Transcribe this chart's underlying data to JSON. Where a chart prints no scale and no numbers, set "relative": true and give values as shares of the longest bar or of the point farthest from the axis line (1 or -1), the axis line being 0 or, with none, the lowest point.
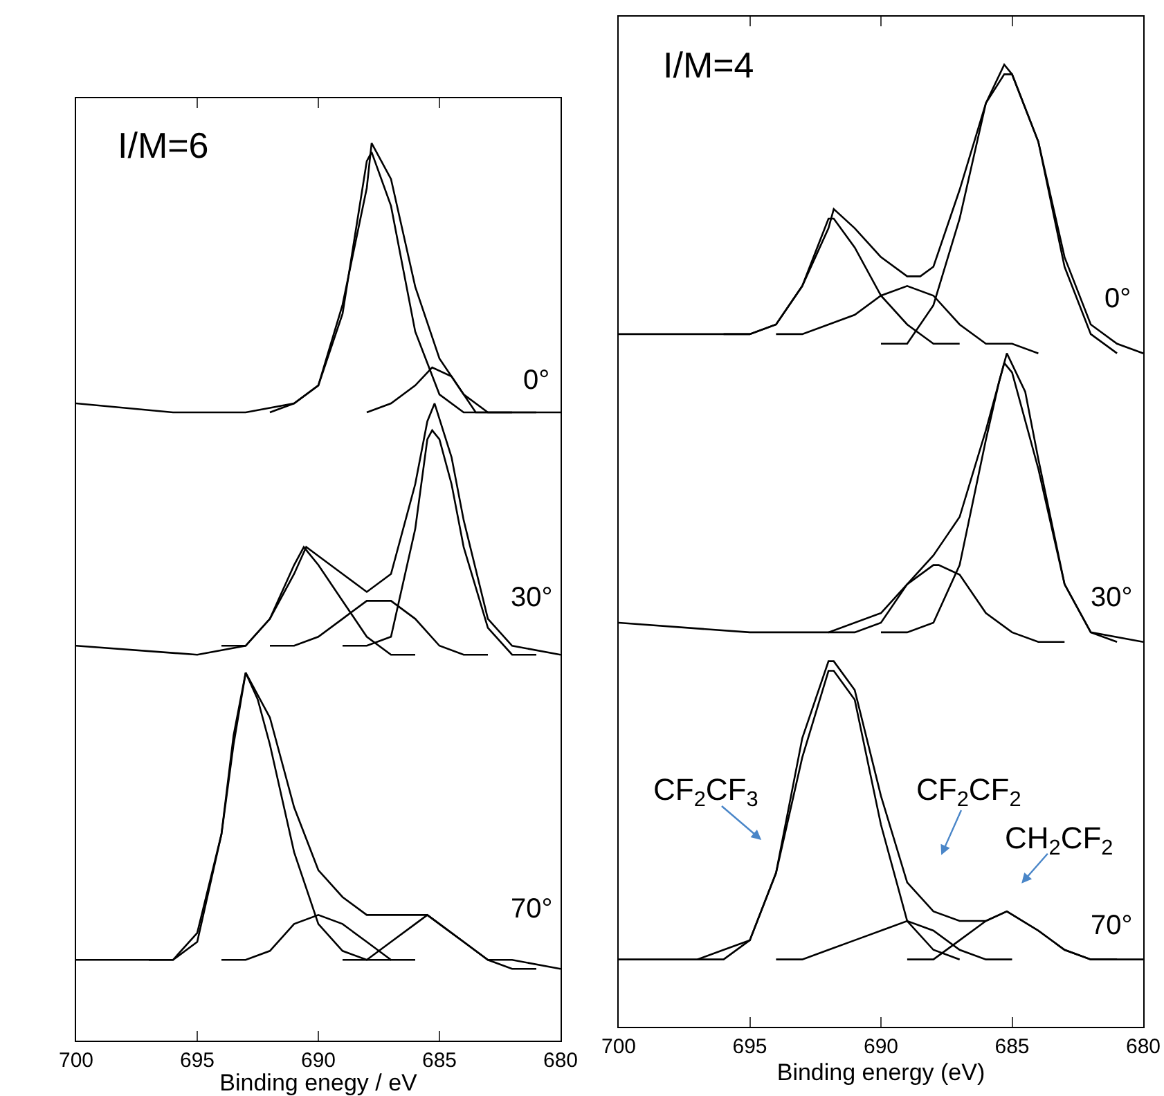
{
  "chart_data": [
    {
      "type": "line",
      "title": "I/M=6",
      "xlabel": "Binding enegy / eV",
      "relative": true,
      "xlim": [
        700,
        680
      ],
      "xticks": [
        700,
        695,
        690,
        685,
        680
      ],
      "marker": "none",
      "line_style": "solid",
      "annotations": [
        "0°",
        "30°",
        "70°"
      ],
      "series": [
        {
          "color": "#000000",
          "x": [
            700,
            696,
            693,
            691,
            690,
            689,
            688,
            687.8,
            687,
            686,
            685,
            684,
            683,
            682,
            680
          ],
          "values": [
            0.71,
            0.7,
            0.7,
            0.71,
            0.73,
            0.82,
            0.95,
            1.0,
            0.96,
            0.84,
            0.76,
            0.72,
            0.7,
            0.7,
            0.7
          ]
        },
        {
          "color": "#000000",
          "x": [
            692,
            691,
            690,
            689,
            688,
            687.8,
            687,
            686,
            685,
            684,
            682
          ],
          "values": [
            0.7,
            0.71,
            0.73,
            0.81,
            0.98,
            0.99,
            0.93,
            0.79,
            0.72,
            0.7,
            0.7
          ]
        },
        {
          "color": "#000000",
          "x": [
            688,
            687,
            686,
            685.3,
            684.5,
            683.5,
            682.5,
            681
          ],
          "values": [
            0.7,
            0.71,
            0.73,
            0.75,
            0.74,
            0.7,
            0.7,
            0.7
          ]
        },
        {
          "color": "#000000",
          "x": [
            700,
            695,
            693,
            692,
            691,
            690.5,
            690,
            689,
            688,
            687,
            686,
            685.5,
            685.2,
            684.5,
            684,
            683,
            682,
            680
          ],
          "values": [
            0.44,
            0.43,
            0.44,
            0.47,
            0.52,
            0.55,
            0.54,
            0.52,
            0.5,
            0.52,
            0.62,
            0.69,
            0.71,
            0.65,
            0.58,
            0.47,
            0.44,
            0.43
          ]
        },
        {
          "color": "#000000",
          "x": [
            694,
            693,
            692,
            691,
            690.6,
            690,
            689,
            688,
            687,
            686
          ],
          "values": [
            0.44,
            0.44,
            0.47,
            0.53,
            0.55,
            0.53,
            0.49,
            0.45,
            0.43,
            0.43
          ]
        },
        {
          "color": "#000000",
          "x": [
            692,
            691,
            690,
            689,
            688,
            687.5,
            687,
            686,
            685,
            684,
            683
          ],
          "values": [
            0.44,
            0.44,
            0.45,
            0.47,
            0.49,
            0.49,
            0.49,
            0.47,
            0.44,
            0.43,
            0.43
          ]
        },
        {
          "color": "#000000",
          "x": [
            689,
            688,
            687,
            686,
            685.5,
            685.3,
            685,
            684.5,
            684,
            683,
            682,
            681
          ],
          "values": [
            0.44,
            0.44,
            0.45,
            0.57,
            0.67,
            0.68,
            0.67,
            0.62,
            0.55,
            0.46,
            0.43,
            0.43
          ]
        },
        {
          "color": "#000000",
          "x": [
            700,
            696,
            695,
            694,
            693.5,
            693,
            692,
            691,
            690,
            689,
            688,
            687,
            686,
            685.5,
            685,
            684,
            683,
            682,
            680
          ],
          "values": [
            0.09,
            0.09,
            0.11,
            0.23,
            0.33,
            0.41,
            0.36,
            0.26,
            0.19,
            0.16,
            0.14,
            0.14,
            0.14,
            0.14,
            0.13,
            0.11,
            0.09,
            0.09,
            0.08
          ]
        },
        {
          "color": "#000000",
          "x": [
            697,
            696,
            695,
            694,
            693.5,
            693,
            692.5,
            692,
            691,
            690,
            689,
            688,
            687
          ],
          "values": [
            0.09,
            0.09,
            0.12,
            0.23,
            0.34,
            0.41,
            0.38,
            0.33,
            0.21,
            0.13,
            0.1,
            0.09,
            0.09
          ]
        },
        {
          "color": "#000000",
          "x": [
            694,
            693,
            692,
            691,
            690,
            689,
            688,
            687,
            686
          ],
          "values": [
            0.09,
            0.09,
            0.1,
            0.13,
            0.14,
            0.13,
            0.11,
            0.09,
            0.09
          ]
        },
        {
          "color": "#000000",
          "x": [
            689,
            688,
            687,
            686,
            685.5,
            685,
            684,
            683,
            682,
            681
          ],
          "values": [
            0.09,
            0.09,
            0.11,
            0.13,
            0.14,
            0.13,
            0.11,
            0.09,
            0.08,
            0.08
          ]
        }
      ]
    },
    {
      "type": "line",
      "title": "I/M=4",
      "xlabel": "Binding energy (eV)",
      "relative": true,
      "xlim": [
        700,
        680
      ],
      "xticks": [
        700,
        695,
        690,
        685,
        680
      ],
      "marker": "none",
      "line_style": "solid",
      "annotations": [
        "0°",
        "30°",
        "70°",
        "CF$_{2}$CF$_{3}$",
        "CF$_{2}$CF$_{2}$",
        "CH$_{2}$CF$_{2}$"
      ],
      "series": [
        {
          "color": "#000000",
          "x": [
            700,
            695,
            694,
            693,
            692,
            691.8,
            691,
            690,
            689,
            688.5,
            688,
            687,
            686,
            685.3,
            685,
            684,
            683,
            682,
            681,
            680
          ],
          "values": [
            0.72,
            0.72,
            0.73,
            0.77,
            0.83,
            0.85,
            0.83,
            0.8,
            0.78,
            0.78,
            0.79,
            0.87,
            0.96,
            1.0,
            0.99,
            0.92,
            0.8,
            0.73,
            0.71,
            0.7
          ]
        },
        {
          "color": "#000000",
          "x": [
            696,
            695,
            694,
            693,
            692,
            691.8,
            691,
            690,
            689,
            688,
            687
          ],
          "values": [
            0.72,
            0.72,
            0.73,
            0.77,
            0.84,
            0.84,
            0.81,
            0.76,
            0.73,
            0.71,
            0.71
          ]
        },
        {
          "color": "#000000",
          "x": [
            694,
            693,
            692,
            691,
            690,
            689,
            688,
            687,
            686,
            685,
            684
          ],
          "values": [
            0.72,
            0.72,
            0.73,
            0.74,
            0.76,
            0.77,
            0.76,
            0.73,
            0.71,
            0.71,
            0.7
          ]
        },
        {
          "color": "#000000",
          "x": [
            690,
            689,
            688,
            687,
            686,
            685.3,
            685,
            684,
            683,
            682,
            681
          ],
          "values": [
            0.71,
            0.71,
            0.75,
            0.84,
            0.96,
            0.99,
            0.99,
            0.92,
            0.79,
            0.72,
            0.7
          ]
        },
        {
          "color": "#000000",
          "x": [
            700,
            695,
            692,
            690,
            689,
            688,
            687.5,
            687,
            686,
            685.5,
            685.2,
            684.5,
            684,
            683,
            682,
            680
          ],
          "values": [
            0.42,
            0.41,
            0.41,
            0.43,
            0.46,
            0.49,
            0.51,
            0.53,
            0.62,
            0.67,
            0.7,
            0.66,
            0.59,
            0.46,
            0.41,
            0.4
          ]
        },
        {
          "color": "#000000",
          "x": [
            692,
            691,
            690,
            689,
            688,
            687.8,
            687,
            686,
            685,
            684,
            683
          ],
          "values": [
            0.41,
            0.41,
            0.42,
            0.46,
            0.48,
            0.48,
            0.47,
            0.43,
            0.41,
            0.4,
            0.4
          ]
        },
        {
          "color": "#000000",
          "x": [
            690,
            689,
            688,
            687,
            686,
            685.5,
            685.3,
            685,
            684,
            683,
            682,
            681
          ],
          "values": [
            0.41,
            0.41,
            0.42,
            0.48,
            0.61,
            0.67,
            0.69,
            0.68,
            0.58,
            0.46,
            0.41,
            0.4
          ]
        },
        {
          "color": "#000000",
          "x": [
            700,
            696,
            695,
            694,
            693,
            692,
            691.8,
            691,
            690,
            689,
            688,
            687,
            686,
            685.2,
            684,
            683,
            682,
            680
          ],
          "values": [
            0.07,
            0.07,
            0.09,
            0.16,
            0.3,
            0.38,
            0.38,
            0.35,
            0.24,
            0.15,
            0.12,
            0.11,
            0.11,
            0.12,
            0.1,
            0.08,
            0.07,
            0.07
          ]
        },
        {
          "color": "#000000",
          "x": [
            697,
            696,
            695,
            694,
            693,
            692,
            691.8,
            691,
            690,
            689,
            688,
            687
          ],
          "values": [
            0.07,
            0.08,
            0.09,
            0.16,
            0.28,
            0.37,
            0.37,
            0.34,
            0.21,
            0.11,
            0.08,
            0.07
          ]
        },
        {
          "color": "#000000",
          "x": [
            694,
            693,
            692,
            691,
            690,
            689,
            688,
            687,
            686,
            685
          ],
          "values": [
            0.07,
            0.07,
            0.08,
            0.09,
            0.1,
            0.11,
            0.1,
            0.08,
            0.07,
            0.07
          ]
        },
        {
          "color": "#000000",
          "x": [
            689,
            688,
            687,
            686,
            685.2,
            684,
            683,
            682,
            681
          ],
          "values": [
            0.07,
            0.07,
            0.09,
            0.11,
            0.12,
            0.1,
            0.08,
            0.07,
            0.07
          ]
        }
      ]
    }
  ]
}
